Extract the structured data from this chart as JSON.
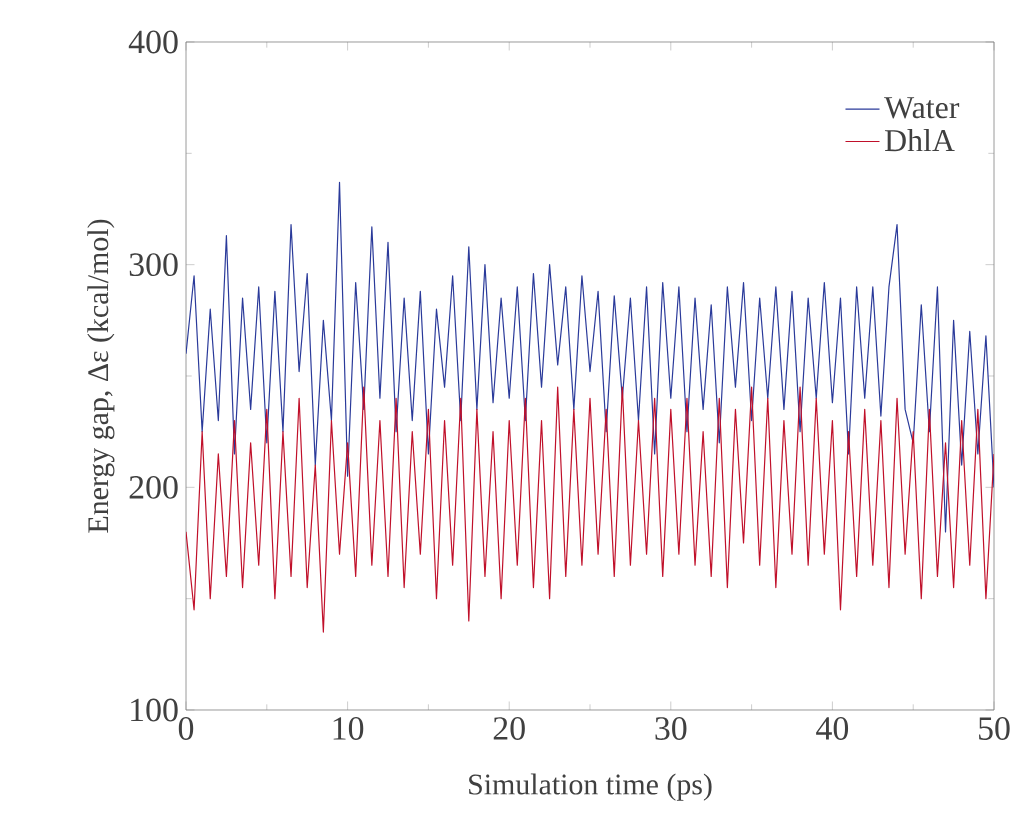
{
  "chart_data": {
    "type": "line",
    "xlabel": "Simulation time (ps)",
    "ylabel": "Energy gap, Δε (kcal/mol)",
    "xlim": [
      0,
      50
    ],
    "ylim": [
      100,
      400
    ],
    "xticks": [
      0,
      10,
      20,
      30,
      40,
      50
    ],
    "yticks": [
      100,
      200,
      300,
      400
    ],
    "legend": "top right",
    "grid": false,
    "marker": "none",
    "line_style": "solid",
    "x": [
      0,
      0.5,
      1,
      1.5,
      2,
      2.5,
      3,
      3.5,
      4,
      4.5,
      5,
      5.5,
      6,
      6.5,
      7,
      7.5,
      8,
      8.5,
      9,
      9.5,
      10,
      10.5,
      11,
      11.5,
      12,
      12.5,
      13,
      13.5,
      14,
      14.5,
      15,
      15.5,
      16,
      16.5,
      17,
      17.5,
      18,
      18.5,
      19,
      19.5,
      20,
      20.5,
      21,
      21.5,
      22,
      22.5,
      23,
      23.5,
      24,
      24.5,
      25,
      25.5,
      26,
      26.5,
      27,
      27.5,
      28,
      28.5,
      29,
      29.5,
      30,
      30.5,
      31,
      31.5,
      32,
      32.5,
      33,
      33.5,
      34,
      34.5,
      35,
      35.5,
      36,
      36.5,
      37,
      37.5,
      38,
      38.5,
      39,
      39.5,
      40,
      40.5,
      41,
      41.5,
      42,
      42.5,
      43,
      43.5,
      44,
      44.5,
      45,
      45.5,
      46,
      46.5,
      47,
      47.5,
      48,
      48.5,
      49,
      49.5,
      50
    ],
    "series": [
      {
        "name": "Water",
        "color": "#2a3a9a",
        "values": [
          260,
          295,
          225,
          280,
          230,
          313,
          215,
          285,
          235,
          290,
          220,
          288,
          225,
          318,
          252,
          296,
          210,
          275,
          230,
          337,
          205,
          292,
          235,
          317,
          240,
          310,
          225,
          285,
          230,
          288,
          215,
          280,
          245,
          295,
          230,
          308,
          235,
          300,
          238,
          285,
          240,
          290,
          230,
          296,
          245,
          300,
          255,
          290,
          235,
          295,
          252,
          288,
          225,
          286,
          240,
          285,
          230,
          290,
          215,
          292,
          240,
          290,
          225,
          285,
          235,
          282,
          220,
          290,
          245,
          292,
          230,
          285,
          240,
          290,
          235,
          288,
          225,
          285,
          240,
          292,
          238,
          285,
          215,
          290,
          240,
          290,
          232,
          290,
          318,
          235,
          220,
          282,
          225,
          290,
          180,
          275,
          210,
          270,
          215,
          268,
          200
        ]
      },
      {
        "name": "DhlA",
        "color": "#c0102a",
        "values": [
          180,
          145,
          225,
          150,
          215,
          160,
          230,
          155,
          220,
          165,
          235,
          150,
          225,
          160,
          240,
          155,
          210,
          135,
          230,
          170,
          220,
          160,
          245,
          165,
          230,
          160,
          240,
          155,
          225,
          170,
          235,
          150,
          230,
          165,
          240,
          140,
          235,
          160,
          225,
          150,
          230,
          165,
          240,
          155,
          230,
          150,
          245,
          160,
          235,
          165,
          240,
          170,
          235,
          160,
          245,
          165,
          230,
          170,
          240,
          160,
          235,
          170,
          240,
          165,
          225,
          160,
          240,
          155,
          235,
          175,
          245,
          165,
          240,
          155,
          230,
          170,
          245,
          165,
          240,
          170,
          230,
          145,
          225,
          160,
          235,
          165,
          230,
          155,
          240,
          170,
          225,
          150,
          235,
          160,
          220,
          155,
          230,
          165,
          235,
          150,
          215
        ]
      }
    ]
  }
}
